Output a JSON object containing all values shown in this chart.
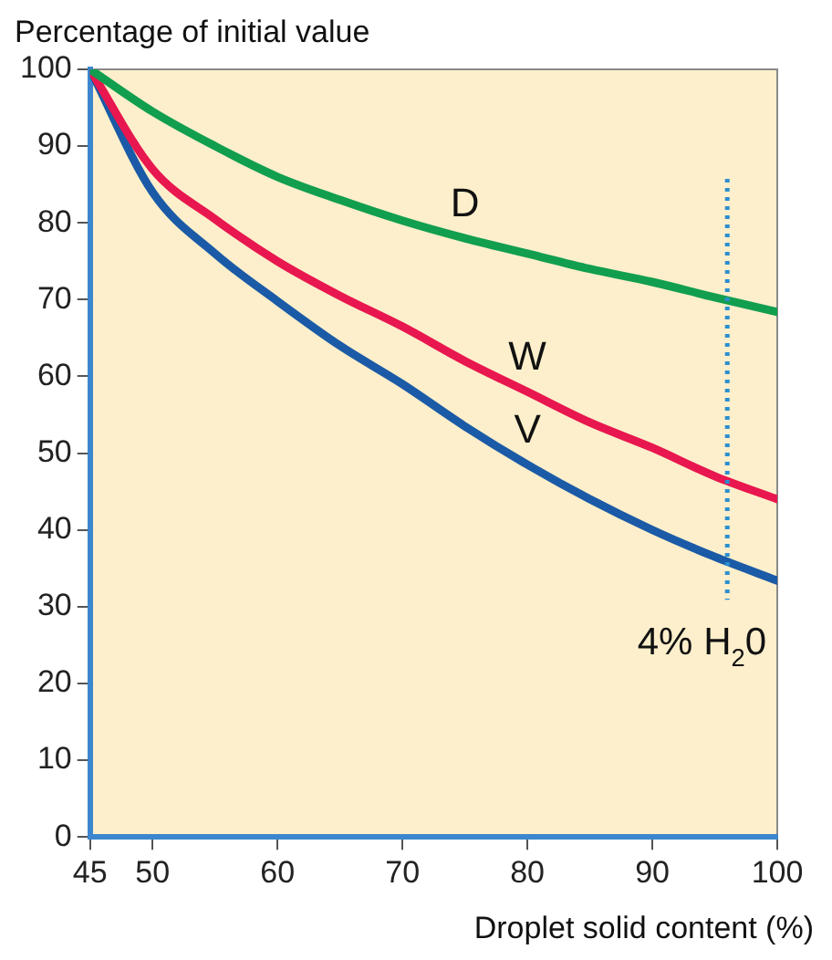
{
  "chart_data": {
    "type": "line",
    "ylabel": "Percentage of initial value",
    "xlabel": "Droplet solid content (%)",
    "x": [
      45,
      50,
      55,
      60,
      65,
      70,
      75,
      80,
      85,
      90,
      95,
      100
    ],
    "series": [
      {
        "name": "D",
        "color": "#119e4f",
        "values": [
          100,
          94.5,
          90,
          86,
          83,
          80.3,
          78,
          76,
          74,
          72.3,
          70.3,
          68.4
        ]
      },
      {
        "name": "W",
        "color": "#e8174f",
        "values": [
          100,
          87,
          80.5,
          75,
          70.5,
          66.5,
          62,
          58,
          54,
          50.7,
          47,
          44
        ]
      },
      {
        "name": "V",
        "color": "#1b5aa6",
        "values": [
          100,
          84,
          76,
          69.8,
          64,
          59,
          53.5,
          48.5,
          44,
          40,
          36.5,
          33.4
        ]
      }
    ],
    "xlim": [
      45,
      100
    ],
    "xticks": [
      45,
      50,
      60,
      70,
      80,
      90,
      100
    ],
    "ylim": [
      0,
      100
    ],
    "yticks": [
      0,
      10,
      20,
      30,
      40,
      50,
      60,
      70,
      80,
      90,
      100
    ],
    "ref_lines": [
      {
        "axis": "x",
        "value": 96,
        "label": "4% H$_{2}$0",
        "color": "#2a8fd0",
        "line_style": "dotted"
      }
    ],
    "grid": false,
    "legend": false,
    "marker": "none",
    "line_style": "solid"
  }
}
